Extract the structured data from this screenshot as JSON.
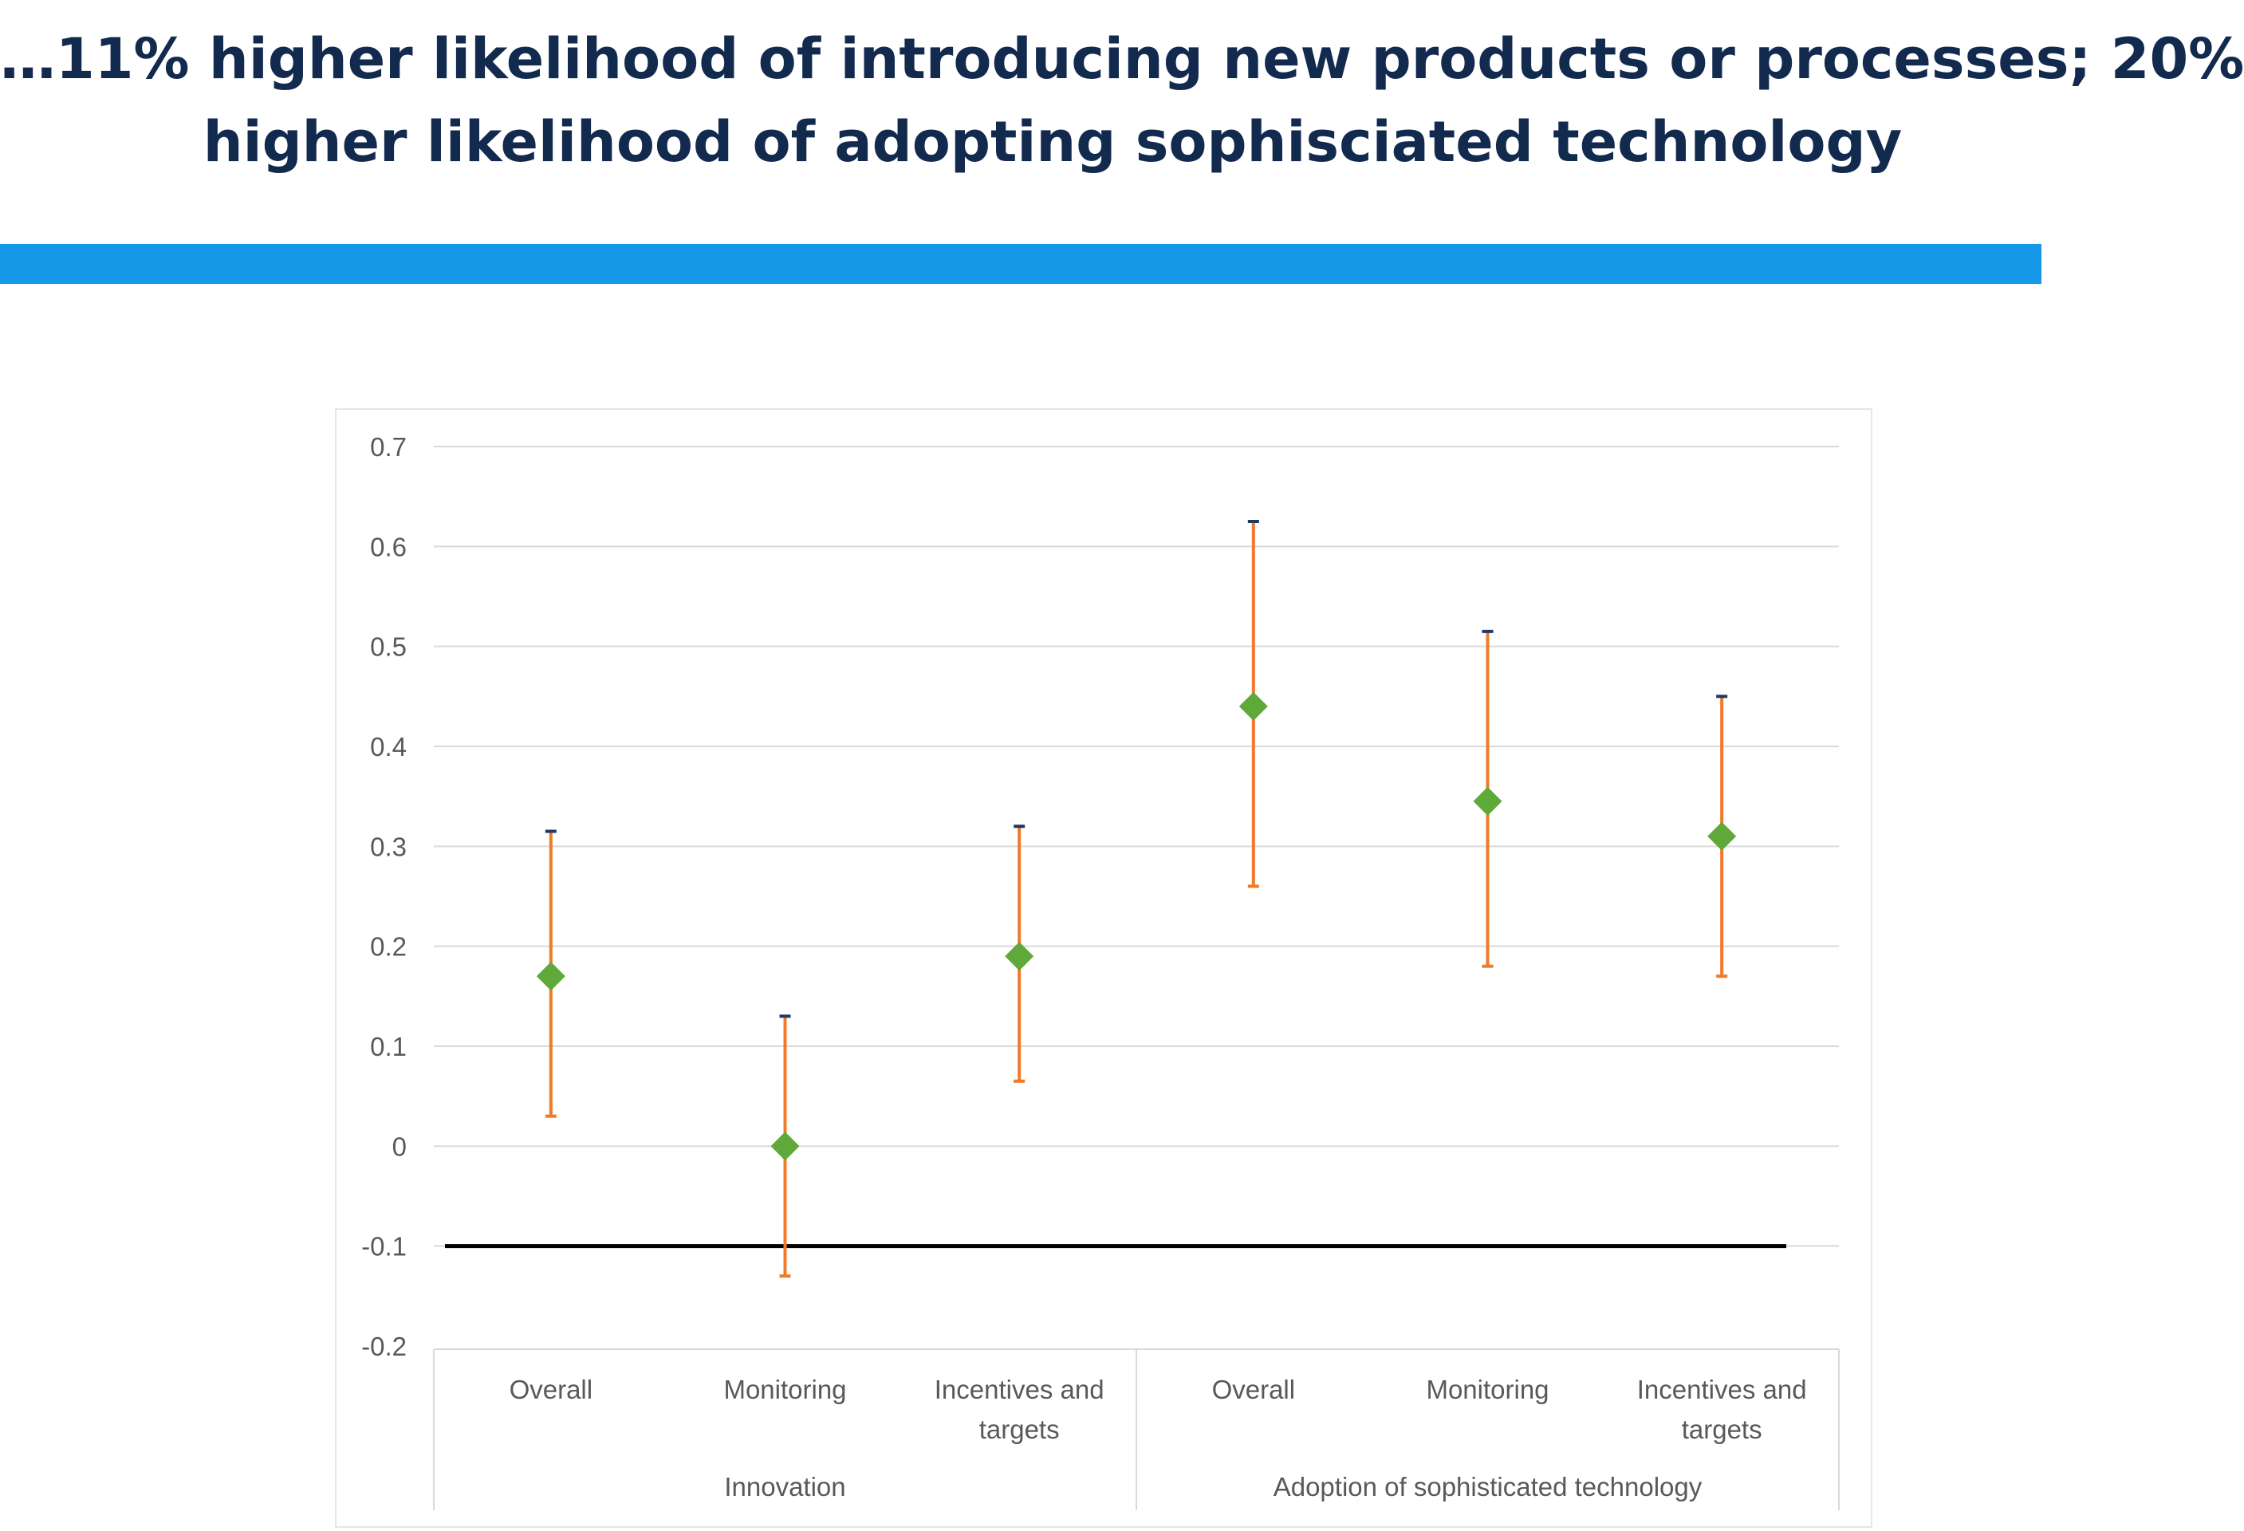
{
  "slide": {
    "title_line1": "…11% higher likelihood of introducing new products or processes; 20%",
    "title_line2": "higher likelihood of adopting sophisciated technology",
    "accent_color": "#1598e8",
    "title_color": "#132a4f"
  },
  "chart_data": {
    "type": "scatter",
    "title": "",
    "xlabel": "",
    "ylabel": "",
    "ylim": [
      -0.2,
      0.7
    ],
    "yticks": [
      0.7,
      0.6,
      0.5,
      0.4,
      0.3,
      0.2,
      0.1,
      0,
      -0.1,
      -0.2
    ],
    "grid": true,
    "legend": "none",
    "groups": [
      {
        "label": "Innovation",
        "categories": [
          "Overall",
          "Monitoring",
          "Incentives and targets"
        ]
      },
      {
        "label": "Adoption of sophisticated technology",
        "categories": [
          "Overall",
          "Monitoring",
          "Incentives and targets"
        ]
      }
    ],
    "points": [
      {
        "group": "Innovation",
        "category": "Overall",
        "value": 0.17,
        "lower": 0.03,
        "upper": 0.315
      },
      {
        "group": "Innovation",
        "category": "Monitoring",
        "value": 0.0,
        "lower": -0.13,
        "upper": 0.13
      },
      {
        "group": "Innovation",
        "category": "Incentives and targets",
        "value": 0.19,
        "lower": 0.065,
        "upper": 0.32
      },
      {
        "group": "Adoption of sophisticated technology",
        "category": "Overall",
        "value": 0.44,
        "lower": 0.26,
        "upper": 0.625
      },
      {
        "group": "Adoption of sophisticated technology",
        "category": "Monitoring",
        "value": 0.345,
        "lower": 0.18,
        "upper": 0.515
      },
      {
        "group": "Adoption of sophisticated technology",
        "category": "Incentives and targets",
        "value": 0.31,
        "lower": 0.17,
        "upper": 0.45
      }
    ],
    "reference_line": {
      "value": -0.1,
      "color": "#000000"
    },
    "colors": {
      "marker": "#5fa83a",
      "error_bar": "#ef7b28",
      "grid": "#d9d9d9",
      "axis_text": "#595959"
    }
  }
}
